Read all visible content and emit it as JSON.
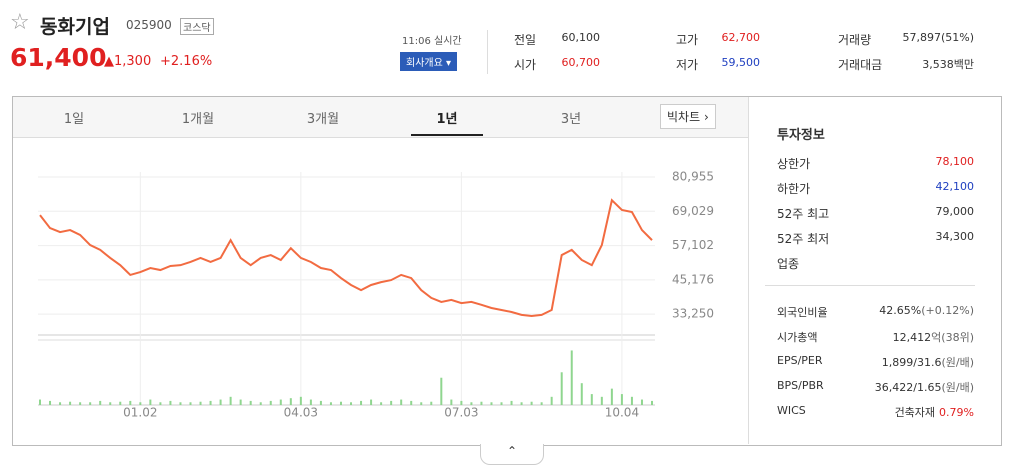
{
  "header": {
    "name": "동화기업",
    "code": "025900",
    "market": "코스닥",
    "price": "61,400",
    "change": "1,300",
    "change_pct": "+2.16%",
    "time": "11:06 실시간",
    "company_button": "회사개요"
  },
  "quote": [
    [
      "전일",
      "60,100",
      "고가",
      "62,700",
      "거래량",
      "57,897(51%)"
    ],
    [
      "시가",
      "60,700",
      "저가",
      "59,500",
      "거래대금",
      "3,538백만"
    ]
  ],
  "tabs": [
    "1일",
    "1개월",
    "3개월",
    "1년",
    "3년"
  ],
  "active_tab": 3,
  "big_chart": "빅차트",
  "chart_data": {
    "type": "line",
    "categories": [
      null,
      null,
      null,
      null,
      null,
      null,
      null,
      null,
      null,
      null,
      "01.02",
      null,
      null,
      null,
      null,
      null,
      null,
      null,
      null,
      null,
      null,
      null,
      null,
      null,
      null,
      null,
      "04.03",
      null,
      null,
      null,
      null,
      null,
      null,
      null,
      null,
      null,
      null,
      null,
      null,
      null,
      null,
      null,
      "07.03",
      null,
      null,
      null,
      null,
      null,
      null,
      null,
      null,
      null,
      null,
      null,
      null,
      null,
      null,
      null,
      "10.04",
      null,
      null,
      null
    ],
    "series": [
      {
        "color": "#f26b41",
        "values": [
          67700,
          63200,
          61800,
          62500,
          60800,
          57300,
          55600,
          52800,
          50300,
          46900,
          47900,
          49300,
          48600,
          50000,
          50300,
          51400,
          52800,
          51400,
          52800,
          59000,
          52800,
          50300,
          52800,
          53800,
          52100,
          56200,
          52800,
          51400,
          49300,
          48600,
          45800,
          43400,
          41600,
          43400,
          44400,
          45100,
          46900,
          45800,
          41600,
          38900,
          37500,
          38200,
          37100,
          37500,
          36500,
          35400,
          34700,
          34000,
          33000,
          32600,
          33000,
          34700,
          53800,
          55600,
          52100,
          50300,
          57300,
          72900,
          69500,
          68800,
          62500,
          59000
        ]
      }
    ],
    "volume": {
      "color": "#8fd68f",
      "values": [
        2,
        1.5,
        1,
        1.2,
        1,
        1,
        1.5,
        1,
        1.2,
        1.5,
        1,
        2,
        1,
        1.5,
        1,
        1,
        1.2,
        1.5,
        2,
        3,
        2,
        1.5,
        1,
        1.5,
        2,
        2.5,
        3,
        2,
        1.5,
        1,
        1.2,
        1,
        1.5,
        2,
        1,
        1.5,
        2,
        1.5,
        1,
        1.2,
        10,
        2,
        1.5,
        1,
        1.2,
        1,
        1,
        1.5,
        1,
        1.2,
        1,
        3,
        12,
        20,
        8,
        4,
        3,
        6,
        4,
        3,
        2,
        1.5
      ]
    },
    "volume_ylim": [
      0,
      22
    ],
    "ylim": [
      26000,
      82700
    ],
    "yticks": [
      {
        "value": 80955,
        "label": "80,955"
      },
      {
        "value": 69029,
        "label": "69,029"
      },
      {
        "value": 57102,
        "label": "57,102"
      },
      {
        "value": 45176,
        "label": "45,176"
      },
      {
        "value": 33250,
        "label": "33,250"
      }
    ],
    "grid": true
  },
  "info": {
    "title": "투자정보",
    "limits": [
      [
        "상한가",
        "78,100",
        "#e02020"
      ],
      [
        "하한가",
        "42,100",
        "#2040c0"
      ],
      [
        "52주 최고",
        "79,000",
        null
      ],
      [
        "52주 최저",
        "34,300",
        null
      ],
      [
        "업종",
        null,
        null
      ]
    ],
    "stats": [
      [
        "외국인비율",
        "42.65%",
        "(+0.12%)"
      ],
      [
        "시가총액",
        "12,412",
        "억(38위)"
      ],
      [
        "EPS/PER",
        "1,899/31.6",
        "(원/배)"
      ],
      [
        "BPS/PBR",
        "36,422/1.65",
        "(원/배)"
      ],
      [
        "WICS",
        "건축자재",
        "0.79%"
      ]
    ]
  }
}
